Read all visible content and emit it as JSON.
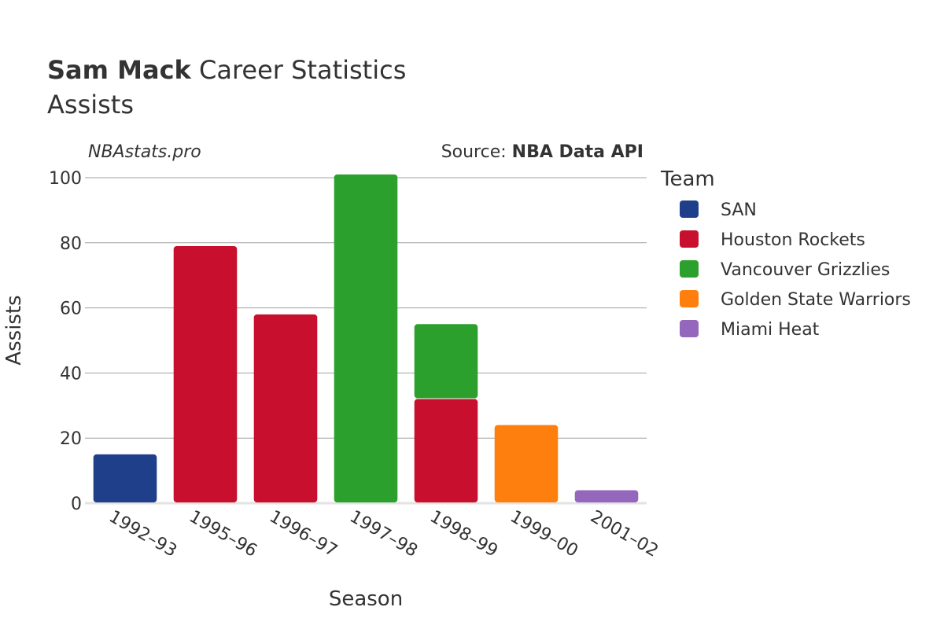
{
  "header": {
    "player_name": "Sam Mack",
    "title_rest": " Career Statistics",
    "subtitle": "Assists"
  },
  "branding": {
    "site": "NBAstats.pro",
    "source_prefix": "Source: ",
    "source_name": "NBA Data API"
  },
  "legend": {
    "title": "Team",
    "items": [
      {
        "label": "SAN",
        "color": "#1f3f8a"
      },
      {
        "label": "Houston Rockets",
        "color": "#c8102e"
      },
      {
        "label": "Vancouver Grizzlies",
        "color": "#2ca02c"
      },
      {
        "label": "Golden State Warriors",
        "color": "#ff7f0e"
      },
      {
        "label": "Miami Heat",
        "color": "#9467bd"
      }
    ]
  },
  "chart_data": {
    "type": "bar",
    "stacked": true,
    "xlabel": "Season",
    "ylabel": "Assists",
    "ylim": [
      0,
      105
    ],
    "yticks": [
      0,
      20,
      40,
      60,
      80,
      100
    ],
    "grid": true,
    "legend_position": "right",
    "categories": [
      "1992–93",
      "1995–96",
      "1996–97",
      "1997–98",
      "1998–99",
      "1999–00",
      "2001–02"
    ],
    "series": [
      {
        "name": "SAN",
        "color": "#1f3f8a",
        "values": [
          15,
          0,
          0,
          0,
          0,
          0,
          0
        ]
      },
      {
        "name": "Houston Rockets",
        "color": "#c8102e",
        "values": [
          0,
          79,
          58,
          0,
          32,
          0,
          0
        ]
      },
      {
        "name": "Vancouver Grizzlies",
        "color": "#2ca02c",
        "values": [
          0,
          0,
          0,
          101,
          23,
          0,
          0
        ]
      },
      {
        "name": "Golden State Warriors",
        "color": "#ff7f0e",
        "values": [
          0,
          0,
          0,
          0,
          0,
          24,
          0
        ]
      },
      {
        "name": "Miami Heat",
        "color": "#9467bd",
        "values": [
          0,
          0,
          0,
          0,
          0,
          0,
          4
        ]
      }
    ]
  }
}
